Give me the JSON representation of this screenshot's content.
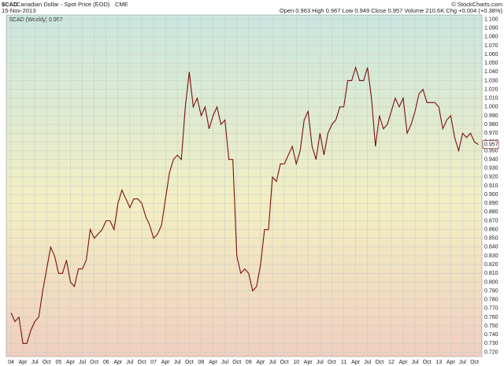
{
  "chart_data": {
    "type": "line",
    "symbol": "$CAD",
    "name": "Canadian Dollar - Spot Price (EOD)",
    "exchange": "CME",
    "date": "15-Nov-2013",
    "quote": "Open 0.963  High 0.967  Low 0.949  Close 0.957  Volume 210.6K  Chg +0.004 (+0.38%)",
    "credit": "© StockCharts.com",
    "x": [
      "2004-01",
      "2004-02",
      "2004-03",
      "2004-04",
      "2004-05",
      "2004-06",
      "2004-07",
      "2004-08",
      "2004-09",
      "2004-10",
      "2004-11",
      "2004-12",
      "2005-01",
      "2005-02",
      "2005-03",
      "2005-04",
      "2005-05",
      "2005-06",
      "2005-07",
      "2005-08",
      "2005-09",
      "2005-10",
      "2005-11",
      "2005-12",
      "2006-01",
      "2006-02",
      "2006-03",
      "2006-04",
      "2006-05",
      "2006-06",
      "2006-07",
      "2006-08",
      "2006-09",
      "2006-10",
      "2006-11",
      "2006-12",
      "2007-01",
      "2007-02",
      "2007-03",
      "2007-04",
      "2007-05",
      "2007-06",
      "2007-07",
      "2007-08",
      "2007-09",
      "2007-10",
      "2007-11",
      "2007-12",
      "2008-01",
      "2008-02",
      "2008-03",
      "2008-04",
      "2008-05",
      "2008-06",
      "2008-07",
      "2008-08",
      "2008-09",
      "2008-10",
      "2008-11",
      "2008-12",
      "2009-01",
      "2009-02",
      "2009-03",
      "2009-04",
      "2009-05",
      "2009-06",
      "2009-07",
      "2009-08",
      "2009-09",
      "2009-10",
      "2009-11",
      "2009-12",
      "2010-01",
      "2010-02",
      "2010-03",
      "2010-04",
      "2010-05",
      "2010-06",
      "2010-07",
      "2010-08",
      "2010-09",
      "2010-10",
      "2010-11",
      "2010-12",
      "2011-01",
      "2011-02",
      "2011-03",
      "2011-04",
      "2011-05",
      "2011-06",
      "2011-07",
      "2011-08",
      "2011-09",
      "2011-10",
      "2011-11",
      "2011-12",
      "2012-01",
      "2012-02",
      "2012-03",
      "2012-04",
      "2012-05",
      "2012-06",
      "2012-07",
      "2012-08",
      "2012-09",
      "2012-10",
      "2012-11",
      "2012-12",
      "2013-01",
      "2013-02",
      "2013-03",
      "2013-04",
      "2013-05",
      "2013-06",
      "2013-07",
      "2013-08",
      "2013-09",
      "2013-10",
      "2013-11"
    ],
    "series": [
      {
        "name": "$CAD (Weekly) 0.957",
        "color": "#7a1010",
        "values": [
          0.765,
          0.755,
          0.76,
          0.73,
          0.73,
          0.745,
          0.755,
          0.76,
          0.79,
          0.815,
          0.84,
          0.83,
          0.81,
          0.81,
          0.825,
          0.8,
          0.795,
          0.815,
          0.815,
          0.825,
          0.86,
          0.85,
          0.855,
          0.86,
          0.87,
          0.87,
          0.86,
          0.89,
          0.905,
          0.895,
          0.885,
          0.895,
          0.895,
          0.89,
          0.875,
          0.865,
          0.85,
          0.855,
          0.865,
          0.895,
          0.925,
          0.94,
          0.945,
          0.94,
          1.0,
          1.04,
          1.0,
          1.01,
          0.99,
          1.0,
          0.975,
          0.99,
          1.0,
          0.98,
          0.985,
          0.94,
          0.94,
          0.83,
          0.81,
          0.815,
          0.81,
          0.79,
          0.795,
          0.82,
          0.86,
          0.86,
          0.92,
          0.915,
          0.935,
          0.935,
          0.945,
          0.955,
          0.935,
          0.95,
          0.985,
          0.995,
          0.955,
          0.94,
          0.97,
          0.945,
          0.97,
          0.98,
          0.985,
          1.0,
          1.0,
          1.03,
          1.03,
          1.045,
          1.03,
          1.03,
          1.045,
          1.01,
          0.955,
          0.99,
          0.975,
          0.98,
          0.995,
          1.01,
          1.0,
          1.01,
          0.97,
          0.98,
          0.995,
          1.015,
          1.02,
          1.005,
          1.005,
          1.005,
          1.0,
          0.975,
          0.985,
          0.99,
          0.965,
          0.95,
          0.97,
          0.965,
          0.97,
          0.96,
          0.957
        ]
      }
    ],
    "xticks": [
      {
        "value": "2004-01",
        "label": "04"
      },
      {
        "value": "2004-04",
        "label": "Apr"
      },
      {
        "value": "2004-07",
        "label": "Jul"
      },
      {
        "value": "2004-10",
        "label": "Oct"
      },
      {
        "value": "2005-01",
        "label": "05"
      },
      {
        "value": "2005-04",
        "label": "Apr"
      },
      {
        "value": "2005-07",
        "label": "Jul"
      },
      {
        "value": "2005-10",
        "label": "Oct"
      },
      {
        "value": "2006-01",
        "label": "06"
      },
      {
        "value": "2006-04",
        "label": "Apr"
      },
      {
        "value": "2006-07",
        "label": "Jul"
      },
      {
        "value": "2006-10",
        "label": "Oct"
      },
      {
        "value": "2007-01",
        "label": "07"
      },
      {
        "value": "2007-04",
        "label": "Apr"
      },
      {
        "value": "2007-07",
        "label": "Jul"
      },
      {
        "value": "2007-10",
        "label": "Oct"
      },
      {
        "value": "2008-01",
        "label": "08"
      },
      {
        "value": "2008-04",
        "label": "Apr"
      },
      {
        "value": "2008-07",
        "label": "Jul"
      },
      {
        "value": "2008-10",
        "label": "Oct"
      },
      {
        "value": "2009-01",
        "label": "09"
      },
      {
        "value": "2009-04",
        "label": "Apr"
      },
      {
        "value": "2009-07",
        "label": "Jul"
      },
      {
        "value": "2009-10",
        "label": "Oct"
      },
      {
        "value": "2010-01",
        "label": "10"
      },
      {
        "value": "2010-04",
        "label": "Apr"
      },
      {
        "value": "2010-07",
        "label": "Jul"
      },
      {
        "value": "2010-10",
        "label": "Oct"
      },
      {
        "value": "2011-01",
        "label": "11"
      },
      {
        "value": "2011-04",
        "label": "Apr"
      },
      {
        "value": "2011-07",
        "label": "Jul"
      },
      {
        "value": "2011-10",
        "label": "Oct"
      },
      {
        "value": "2012-01",
        "label": "12"
      },
      {
        "value": "2012-04",
        "label": "Apr"
      },
      {
        "value": "2012-07",
        "label": "Jul"
      },
      {
        "value": "2012-10",
        "label": "Oct"
      },
      {
        "value": "2013-01",
        "label": "13"
      },
      {
        "value": "2013-04",
        "label": "Apr"
      },
      {
        "value": "2013-07",
        "label": "Jul"
      },
      {
        "value": "2013-10",
        "label": "Oct"
      }
    ],
    "ylim": [
      0.715,
      1.105
    ],
    "yticks": [
      {
        "value": 0.72,
        "label": "0.720"
      },
      {
        "value": 0.73,
        "label": "0.730"
      },
      {
        "value": 0.74,
        "label": "0.740"
      },
      {
        "value": 0.75,
        "label": "0.750"
      },
      {
        "value": 0.76,
        "label": "0.760"
      },
      {
        "value": 0.77,
        "label": "0.770"
      },
      {
        "value": 0.78,
        "label": "0.780"
      },
      {
        "value": 0.79,
        "label": "0.790"
      },
      {
        "value": 0.8,
        "label": "0.800"
      },
      {
        "value": 0.81,
        "label": "0.810"
      },
      {
        "value": 0.82,
        "label": "0.820"
      },
      {
        "value": 0.83,
        "label": "0.830"
      },
      {
        "value": 0.84,
        "label": "0.840"
      },
      {
        "value": 0.85,
        "label": "0.850"
      },
      {
        "value": 0.86,
        "label": "0.860"
      },
      {
        "value": 0.87,
        "label": "0.870"
      },
      {
        "value": 0.88,
        "label": "0.880"
      },
      {
        "value": 0.89,
        "label": "0.890"
      },
      {
        "value": 0.9,
        "label": "0.900"
      },
      {
        "value": 0.91,
        "label": "0.910"
      },
      {
        "value": 0.92,
        "label": "0.920"
      },
      {
        "value": 0.93,
        "label": "0.930"
      },
      {
        "value": 0.94,
        "label": "0.940"
      },
      {
        "value": 0.95,
        "label": "0.950"
      },
      {
        "value": 0.96,
        "label": "0.960"
      },
      {
        "value": 0.97,
        "label": "0.970"
      },
      {
        "value": 0.98,
        "label": "0.980"
      },
      {
        "value": 0.99,
        "label": "0.990"
      },
      {
        "value": 1.0,
        "label": "1.000"
      },
      {
        "value": 1.01,
        "label": "1.010"
      },
      {
        "value": 1.02,
        "label": "1.020"
      },
      {
        "value": 1.03,
        "label": "1.030"
      },
      {
        "value": 1.04,
        "label": "1.040"
      },
      {
        "value": 1.05,
        "label": "1.050"
      },
      {
        "value": 1.06,
        "label": "1.060"
      },
      {
        "value": 1.07,
        "label": "1.070"
      },
      {
        "value": 1.08,
        "label": "1.080"
      },
      {
        "value": 1.09,
        "label": "1.090"
      },
      {
        "value": 1.1,
        "label": "1.100"
      }
    ],
    "grid": true
  }
}
